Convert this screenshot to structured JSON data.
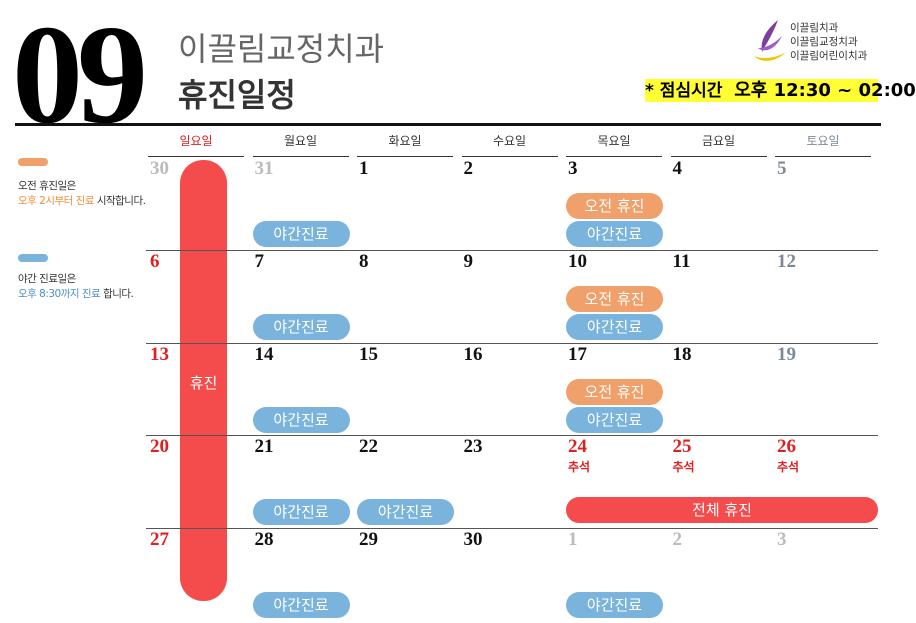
{
  "header": {
    "month": "09",
    "clinic": "이끌림교정치과",
    "title": "휴진일정",
    "logo_lines": [
      "이끌림치과",
      "이끌림교정치과",
      "이끌림어린이치과"
    ],
    "lunch_label": "* 점심시간",
    "lunch_time": "오후 12:30 ~ 02:00"
  },
  "legend": [
    {
      "title": "오전 휴진일은",
      "highlight": "오후 2시부터 진료",
      "rest": "시작합니다."
    },
    {
      "title": "야간 진료일은",
      "highlight": "오후 8:30까지 진료",
      "rest": "합니다."
    }
  ],
  "weekdays": [
    "일요일",
    "월요일",
    "화요일",
    "수요일",
    "목요일",
    "금요일",
    "토요일"
  ],
  "weeks": [
    [
      {
        "day": "30"
      },
      {
        "day": "31",
        "night": "야간진료"
      },
      {
        "day": "1"
      },
      {
        "day": "2"
      },
      {
        "day": "3",
        "morning_off": "오전 휴진",
        "night": "야간진료"
      },
      {
        "day": "4"
      },
      {
        "day": "5"
      }
    ],
    [
      {
        "day": "6"
      },
      {
        "day": "7",
        "night": "야간진료"
      },
      {
        "day": "8"
      },
      {
        "day": "9"
      },
      {
        "day": "10",
        "morning_off": "오전 휴진",
        "night": "야간진료"
      },
      {
        "day": "11"
      },
      {
        "day": "12"
      }
    ],
    [
      {
        "day": "13"
      },
      {
        "day": "14",
        "night": "야간진료"
      },
      {
        "day": "15"
      },
      {
        "day": "16"
      },
      {
        "day": "17",
        "morning_off": "오전 휴진",
        "night": "야간진료"
      },
      {
        "day": "18"
      },
      {
        "day": "19"
      }
    ],
    [
      {
        "day": "20"
      },
      {
        "day": "21",
        "night": "야간진료"
      },
      {
        "day": "22",
        "night": "야간진료"
      },
      {
        "day": "23"
      },
      {
        "day": "24",
        "note": "추석"
      },
      {
        "day": "25",
        "note": "추석"
      },
      {
        "day": "26",
        "note": "추석"
      }
    ],
    [
      {
        "day": "27"
      },
      {
        "day": "28",
        "night": "야간진료"
      },
      {
        "day": "29"
      },
      {
        "day": "30"
      },
      {
        "day": "1",
        "night": "야간진료"
      },
      {
        "day": "2"
      },
      {
        "day": "3"
      }
    ]
  ],
  "sunday_closure": "휴진",
  "full_closure": "전체 휴진"
}
